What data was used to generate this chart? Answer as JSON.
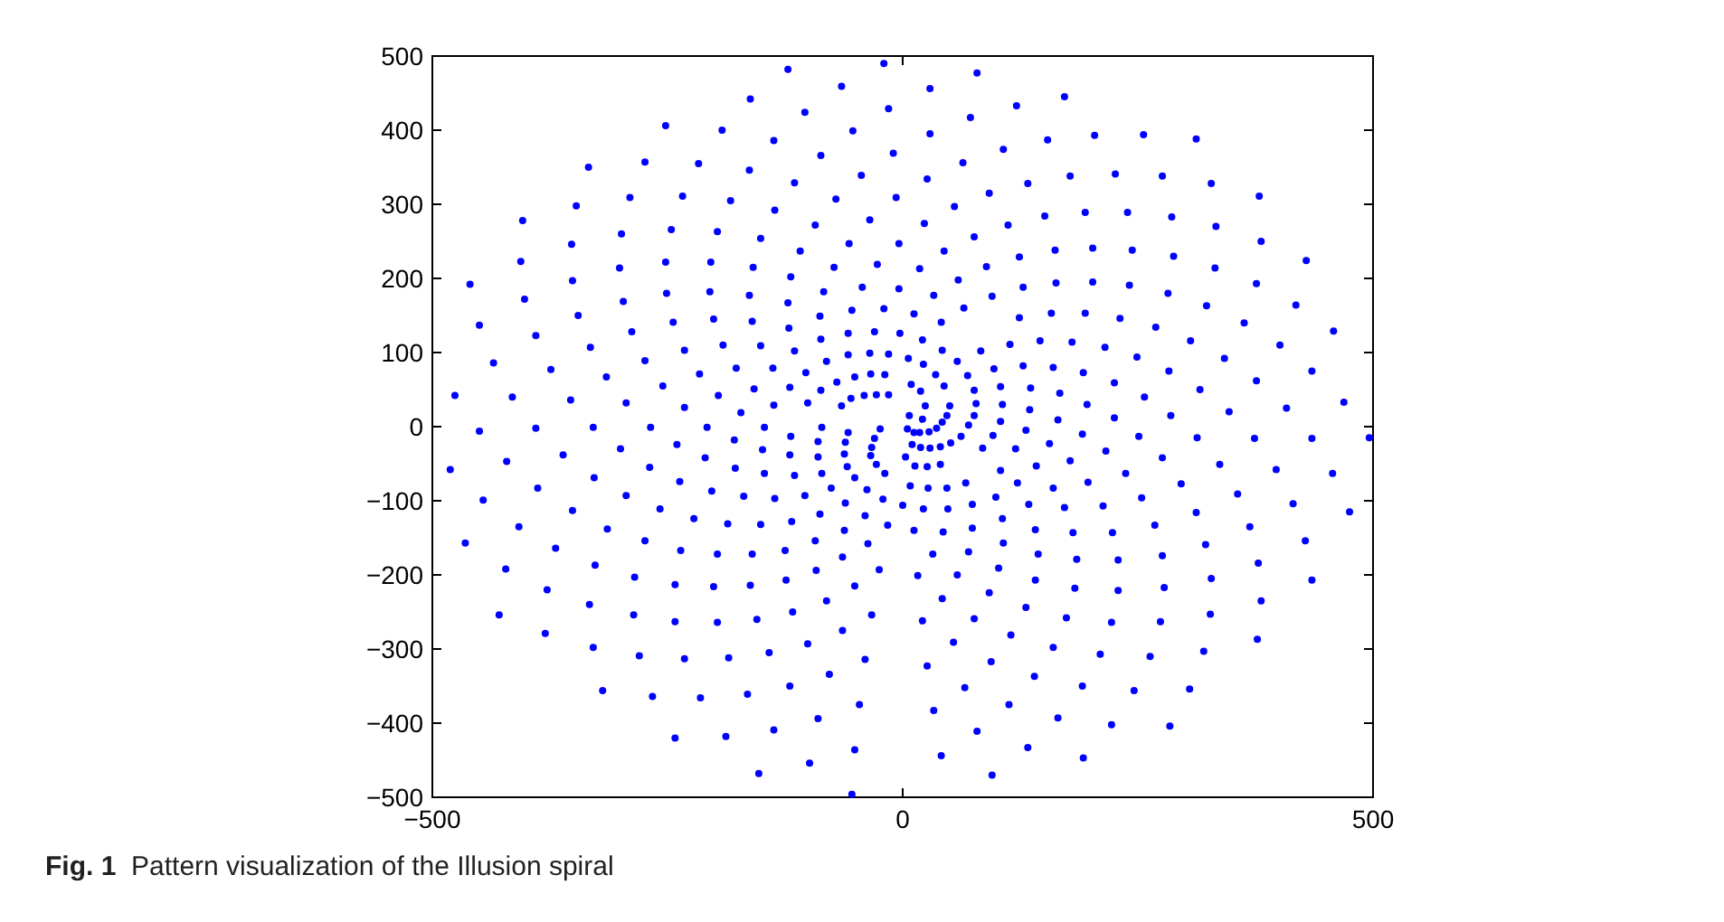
{
  "chart_data": {
    "type": "scatter",
    "annotations": [
      "Fig. 1 Pattern visualization of the Illusion spiral"
    ],
    "xlim": [
      -500,
      500
    ],
    "ylim": [
      -500,
      500
    ],
    "xticks": [
      -500,
      0,
      500
    ],
    "yticks": [
      -500,
      -400,
      -300,
      -200,
      -100,
      0,
      100,
      200,
      300,
      400,
      500
    ],
    "marker": "circle",
    "series": [
      {
        "color": "#0000ff",
        "x": [
          -122,
          -20,
          -65,
          -162,
          -252,
          -334,
          -404,
          -460,
          -450,
          -435,
          -476,
          -415,
          -353,
          -15,
          -104,
          -192,
          -274,
          -347,
          -406,
          -402,
          -390,
          -374,
          -294,
          -137,
          -53,
          -217,
          -290,
          -352,
          -351,
          -345,
          -332,
          -315,
          -163,
          -87,
          -10,
          -234,
          -299,
          -301,
          -297,
          -288,
          -274,
          -255,
          -232,
          -115,
          -44,
          -183,
          -246,
          -252,
          -251,
          -244,
          -232,
          -216,
          -196,
          -172,
          -136,
          -71,
          -7,
          -197,
          -204,
          -205,
          -201,
          -191,
          -177,
          -158,
          -137,
          -151,
          -93,
          -35,
          -159,
          -163,
          -160,
          -151,
          -138,
          -120,
          -101,
          -109,
          -57,
          -4,
          -119,
          -122,
          -121,
          -115,
          -103,
          -87,
          -65,
          -73,
          -27,
          -84,
          -88,
          -87,
          -81,
          -70,
          -55,
          -43,
          -4,
          -54,
          -58,
          -58,
          -51,
          -41,
          -20,
          -30,
          -35,
          -34,
          -28,
          -3,
          -15,
          -19,
          -15
        ],
        "values": [
          482,
          490,
          459,
          442,
          406,
          350,
          278,
          192,
          137,
          86,
          42,
          40,
          36,
          429,
          424,
          400,
          357,
          298,
          223,
          172,
          123,
          77,
          32,
          386,
          399,
          355,
          309,
          246,
          197,
          150,
          107,
          67,
          346,
          366,
          369,
          311,
          260,
          214,
          169,
          128,
          89,
          55,
          26,
          329,
          339,
          305,
          266,
          222,
          180,
          141,
          103,
          71,
          42,
          19,
          292,
          307,
          309,
          263,
          222,
          182,
          145,
          110,
          79,
          51,
          29,
          254,
          272,
          279,
          215,
          177,
          142,
          109,
          79,
          53,
          32,
          237,
          247,
          247,
          202,
          167,
          133,
          102,
          73,
          49,
          28,
          215,
          219,
          182,
          149,
          118,
          88,
          60,
          38,
          188,
          186,
          157,
          126,
          97,
          67,
          42,
          159,
          128,
          99,
          71,
          43,
          126,
          98,
          70,
          43
        ]
      },
      {
        "color": "#0000ff",
        "x": [
          79,
          29,
          121,
          172,
          72,
          29,
          204,
          256,
          312,
          154,
          107,
          64,
          26,
          133,
          178,
          226,
          276,
          328,
          379,
          92,
          55,
          23,
          151,
          194,
          239,
          286,
          333,
          381,
          429,
          112,
          76,
          44,
          18,
          124,
          162,
          202,
          244,
          288,
          332,
          376,
          418,
          458,
          89,
          59,
          33,
          12,
          128,
          163,
          202,
          241,
          282,
          323,
          363,
          401,
          435,
          469,
          95,
          65,
          41,
          21,
          6,
          124,
          158,
          194,
          231,
          269,
          306,
          342,
          376,
          408,
          83,
          114,
          146,
          180,
          215,
          249,
          283,
          316,
          347,
          58,
          42,
          97,
          128,
          160,
          192,
          225,
          257,
          285,
          35,
          69,
          104,
          136,
          167,
          196,
          225,
          22,
          9,
          19,
          44,
          76,
          78,
          106,
          135,
          165,
          24,
          50,
          76,
          104,
          47,
          42,
          70,
          21,
          7
        ],
        "values": [
          477,
          456,
          433,
          445,
          417,
          395,
          393,
          394,
          388,
          387,
          374,
          356,
          334,
          328,
          338,
          341,
          338,
          328,
          311,
          315,
          297,
          274,
          284,
          289,
          289,
          283,
          270,
          250,
          224,
          272,
          256,
          237,
          213,
          229,
          238,
          241,
          238,
          230,
          214,
          193,
          164,
          129,
          216,
          198,
          177,
          152,
          188,
          194,
          195,
          191,
          180,
          163,
          140,
          110,
          75,
          33,
          176,
          160,
          141,
          117,
          92,
          147,
          153,
          153,
          146,
          134,
          116,
          92,
          62,
          25,
          102,
          111,
          116,
          114,
          107,
          94,
          75,
          50,
          20,
          88,
          103,
          78,
          82,
          80,
          73,
          59,
          40,
          15,
          70,
          69,
          54,
          52,
          45,
          30,
          12,
          84,
          57,
          48,
          55,
          49,
          31,
          30,
          23,
          9,
          28,
          28,
          15,
          7,
          15,
          6,
          2,
          10,
          15
        ]
      },
      {
        "color": "#0000ff",
        "x": [
          -450,
          -481,
          -446,
          -465,
          -422,
          -429,
          -380,
          -329,
          -319,
          -266,
          -242,
          -188,
          -153,
          -99,
          -54,
          -390,
          -421,
          -388,
          -408,
          -369,
          -378,
          -333,
          -286,
          -280,
          -232,
          -215,
          -165,
          -137,
          -90,
          -51,
          -329,
          -361,
          -328,
          -351,
          -314,
          -327,
          -285,
          -242,
          -242,
          -197,
          -185,
          -142,
          -120,
          -78,
          -46,
          -268,
          -300,
          -269,
          -294,
          -258,
          -274,
          -236,
          -201,
          -162,
          -155,
          -117,
          -101,
          -64,
          -40,
          -208,
          -240,
          -210,
          -237,
          -203,
          -222,
          -186,
          -197,
          -160,
          -124,
          -81,
          -51,
          -33,
          -147,
          -179,
          -149,
          -178,
          -147,
          -169,
          -136,
          -151,
          -118,
          -125,
          -92,
          -64,
          -25,
          -86,
          -119,
          -90,
          -120,
          -90,
          -115,
          -86,
          -104,
          -76,
          -88,
          -61,
          -93,
          -62,
          -37,
          -58,
          -61,
          -62,
          -59,
          -51,
          -38,
          -40,
          -21,
          -16,
          -28,
          -34,
          -33,
          -30,
          -19,
          -24
        ],
        "values": [
          -6,
          -58,
          -99,
          -157,
          -192,
          -254,
          -279,
          -298,
          -356,
          -364,
          -420,
          -418,
          -468,
          -454,
          -496,
          -2,
          -47,
          -83,
          -135,
          -164,
          -220,
          -240,
          -254,
          -309,
          -313,
          -366,
          -361,
          -409,
          -394,
          -436,
          -1,
          -38,
          -69,
          -113,
          -138,
          -187,
          -203,
          -213,
          -263,
          -264,
          -312,
          -305,
          -350,
          -334,
          -375,
          -1,
          -30,
          -55,
          -93,
          -111,
          -154,
          -167,
          -216,
          -214,
          -260,
          -250,
          -293,
          -275,
          -314,
          -1,
          -24,
          -42,
          -74,
          -87,
          -124,
          -131,
          -172,
          -172,
          -207,
          -235,
          -215,
          -254,
          -1,
          -18,
          -31,
          -56,
          -63,
          -94,
          -97,
          -132,
          -128,
          -167,
          -194,
          -176,
          -193,
          -1,
          -13,
          -20,
          -38,
          -41,
          -66,
          -63,
          -93,
          -83,
          -118,
          -103,
          -154,
          -140,
          -158,
          -8,
          -21,
          -37,
          -54,
          -69,
          -85,
          -120,
          -98,
          -133,
          -51,
          -39,
          -28,
          -16,
          -63,
          -3
        ]
      },
      {
        "color": "#0000ff",
        "x": [
          251,
          313,
          374,
          435,
          496,
          191,
          131,
          337,
          397,
          457,
          475,
          276,
          216,
          156,
          96,
          356,
          415,
          428,
          435,
          377,
          378,
          381,
          296,
          237,
          178,
          120,
          62,
          312,
          369,
          322,
          328,
          327,
          320,
          305,
          284,
          254,
          197,
          142,
          85,
          268,
          276,
          278,
          274,
          263,
          246,
          222,
          192,
          213,
          160,
          104,
          223,
          229,
          229,
          222,
          210,
          191,
          165,
          133,
          95,
          172,
          122,
          181,
          185,
          183,
          174,
          160,
          140,
          113,
          79,
          41,
          134,
          141,
          144,
          141,
          131,
          115,
          94,
          66,
          33,
          99,
          106,
          107,
          102,
          92,
          76,
          54,
          26,
          67,
          74,
          70,
          58,
          42,
          21,
          74,
          48,
          43,
          32,
          16,
          47,
          40,
          27,
          22,
          12,
          13,
          26,
          8,
          0,
          10,
          19,
          29,
          40,
          51,
          3,
          18,
          28,
          36,
          12,
          5
        ],
        "values": [
          -13,
          -15,
          -16,
          -16,
          -15,
          -10,
          -5,
          -51,
          -58,
          -63,
          -115,
          -42,
          -33,
          -23,
          -12,
          -91,
          -104,
          -154,
          -207,
          -287,
          -184,
          -235,
          -77,
          -63,
          -46,
          -30,
          -13,
          -116,
          -135,
          -159,
          -205,
          -253,
          -303,
          -354,
          -404,
          -96,
          -75,
          -53,
          -29,
          -133,
          -174,
          -217,
          -263,
          -310,
          -356,
          -402,
          -447,
          -107,
          -83,
          -59,
          -143,
          -180,
          -221,
          -264,
          -307,
          -350,
          -393,
          -433,
          -470,
          -109,
          -76,
          -143,
          -179,
          -218,
          -258,
          -298,
          -337,
          -375,
          -411,
          -444,
          -105,
          -139,
          -172,
          -207,
          -244,
          -281,
          -317,
          -352,
          -383,
          -95,
          -124,
          -157,
          -191,
          -224,
          -259,
          -291,
          -323,
          -76,
          -105,
          -169,
          -200,
          -232,
          -262,
          -137,
          -111,
          -142,
          -172,
          -201,
          -83,
          -51,
          -83,
          -111,
          -140,
          -53,
          -54,
          -80,
          -106,
          -24,
          -28,
          -29,
          -27,
          -22,
          -41,
          -8,
          -7,
          -2,
          -8,
          -3
        ]
      }
    ]
  }
}
